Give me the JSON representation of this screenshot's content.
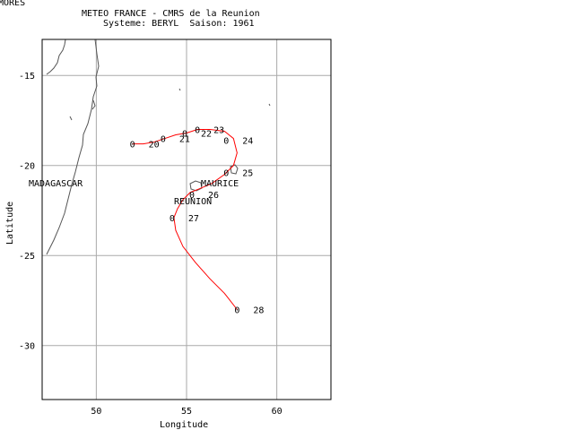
{
  "corner_label": "MORES",
  "title_line1": "METEO FRANCE - CMRS de la Reunion",
  "title_line2": "Systeme: BERYL  Saison: 1961",
  "chart_data": {
    "type": "line",
    "xlabel": "Longitude",
    "ylabel": "Latitude",
    "xlim": [
      47,
      63
    ],
    "ylim": [
      -33,
      -13
    ],
    "xticks": [
      50,
      55,
      60
    ],
    "yticks": [
      -15,
      -20,
      -25,
      -30
    ],
    "xtick_labels": [
      "50",
      "55",
      "60"
    ],
    "ytick_labels": [
      "-15",
      "-20",
      "-25",
      "-30"
    ],
    "grid": true,
    "track_color": "#ff0000",
    "track": {
      "name": "BERYL",
      "x": [
        52.0,
        52.6,
        53.2,
        53.8,
        54.4,
        55.0,
        55.6,
        56.3,
        57.1,
        57.6,
        57.8,
        57.6,
        57.1,
        56.4,
        55.7,
        55.2,
        54.8,
        54.5,
        54.3,
        54.4,
        54.8,
        55.5,
        56.3,
        57.1,
        57.8
      ],
      "y": [
        -18.8,
        -18.8,
        -18.7,
        -18.5,
        -18.3,
        -18.2,
        -18.0,
        -18.0,
        -18.1,
        -18.5,
        -19.3,
        -20.0,
        -20.5,
        -21.0,
        -21.3,
        -21.5,
        -21.9,
        -22.4,
        -22.9,
        -23.6,
        -24.5,
        -25.4,
        -26.3,
        -27.1,
        -28.0
      ]
    },
    "points": [
      {
        "x": 52.0,
        "y": -18.8,
        "hour": "0",
        "day": "20"
      },
      {
        "x": 53.7,
        "y": -18.5,
        "hour": "0",
        "day": "21"
      },
      {
        "x": 54.9,
        "y": -18.2,
        "hour": "0",
        "day": "22"
      },
      {
        "x": 55.6,
        "y": -18.0,
        "hour": "0",
        "day": "23"
      },
      {
        "x": 57.2,
        "y": -18.6,
        "hour": "0",
        "day": "24"
      },
      {
        "x": 57.2,
        "y": -20.4,
        "hour": "0",
        "day": "25"
      },
      {
        "x": 55.3,
        "y": -21.6,
        "hour": "0",
        "day": "26"
      },
      {
        "x": 54.2,
        "y": -22.9,
        "hour": "0",
        "day": "27"
      },
      {
        "x": 57.8,
        "y": -28.0,
        "hour": "0",
        "day": "28"
      }
    ],
    "place_labels": [
      {
        "name": "MADAGASCAR"
      },
      {
        "name": "MAURICE"
      },
      {
        "name": "REUNION"
      }
    ]
  }
}
